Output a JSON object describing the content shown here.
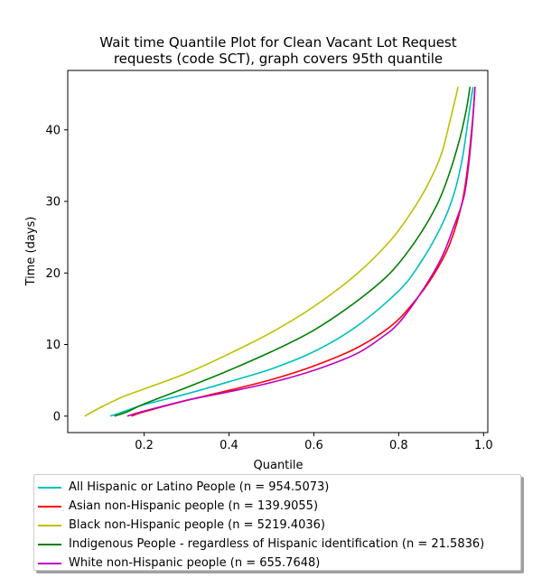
{
  "chart_data": {
    "type": "line",
    "title": [
      "Wait time Quantile Plot for Clean Vacant Lot Request",
      "requests (code SCT), graph covers 95th quantile"
    ],
    "xlabel": "Quantile",
    "ylabel": "Time (days)",
    "xlim": [
      0.02,
      1.01
    ],
    "ylim": [
      -2.3,
      48.3
    ],
    "xticks": [
      0.2,
      0.4,
      0.6,
      0.8,
      1.0
    ],
    "xtick_labels": [
      "0.2",
      "0.4",
      "0.6",
      "0.8",
      "1.0"
    ],
    "yticks": [
      0,
      10,
      20,
      30,
      40
    ],
    "ytick_labels": [
      "0",
      "10",
      "20",
      "30",
      "40"
    ],
    "grid": false,
    "legend_placement": "below",
    "series": [
      {
        "name": "All Hispanic or Latino People (n = 954.5073)",
        "color": "#00bfbf",
        "points": [
          [
            0.12,
            0
          ],
          [
            0.15,
            0.6
          ],
          [
            0.2,
            1.6
          ],
          [
            0.3,
            3.1
          ],
          [
            0.4,
            4.8
          ],
          [
            0.5,
            6.6
          ],
          [
            0.6,
            9.0
          ],
          [
            0.7,
            12.5
          ],
          [
            0.8,
            17.5
          ],
          [
            0.85,
            21.3
          ],
          [
            0.9,
            26.5
          ],
          [
            0.93,
            31.0
          ],
          [
            0.95,
            36.0
          ],
          [
            0.965,
            42.0
          ],
          [
            0.975,
            46.0
          ]
        ]
      },
      {
        "name": "Asian non-Hispanic people (n = 139.9055)",
        "color": "#ff0000",
        "points": [
          [
            0.17,
            0
          ],
          [
            0.2,
            0.6
          ],
          [
            0.3,
            2.2
          ],
          [
            0.4,
            3.6
          ],
          [
            0.5,
            5.1
          ],
          [
            0.6,
            7.0
          ],
          [
            0.7,
            9.5
          ],
          [
            0.78,
            12.5
          ],
          [
            0.83,
            15.5
          ],
          [
            0.88,
            19.5
          ],
          [
            0.92,
            24.0
          ],
          [
            0.95,
            30.0
          ],
          [
            0.965,
            36.0
          ],
          [
            0.975,
            42.0
          ],
          [
            0.98,
            46.0
          ]
        ]
      },
      {
        "name": "Black non-Hispanic people (n = 5219.4036)",
        "color": "#bfbf00",
        "points": [
          [
            0.06,
            0
          ],
          [
            0.1,
            1.3
          ],
          [
            0.15,
            2.7
          ],
          [
            0.2,
            3.8
          ],
          [
            0.3,
            6.0
          ],
          [
            0.4,
            8.7
          ],
          [
            0.5,
            11.7
          ],
          [
            0.6,
            15.3
          ],
          [
            0.7,
            19.8
          ],
          [
            0.78,
            24.5
          ],
          [
            0.83,
            28.5
          ],
          [
            0.87,
            32.5
          ],
          [
            0.9,
            36.5
          ],
          [
            0.92,
            41.0
          ],
          [
            0.94,
            46.0
          ]
        ]
      },
      {
        "name": "Indigenous People - regardless of Hispanic identification (n = 21.5836)",
        "color": "#008000",
        "points": [
          [
            0.13,
            0
          ],
          [
            0.16,
            0.6
          ],
          [
            0.2,
            1.7
          ],
          [
            0.3,
            4.0
          ],
          [
            0.4,
            6.4
          ],
          [
            0.5,
            9.0
          ],
          [
            0.6,
            12.0
          ],
          [
            0.7,
            16.0
          ],
          [
            0.78,
            20.0
          ],
          [
            0.84,
            24.5
          ],
          [
            0.89,
            29.5
          ],
          [
            0.92,
            34.0
          ],
          [
            0.945,
            39.0
          ],
          [
            0.96,
            43.0
          ],
          [
            0.968,
            46.0
          ]
        ]
      },
      {
        "name": "White non-Hispanic people (n = 655.7648)",
        "color": "#bf00bf",
        "points": [
          [
            0.16,
            0
          ],
          [
            0.2,
            0.7
          ],
          [
            0.3,
            2.2
          ],
          [
            0.4,
            3.4
          ],
          [
            0.5,
            4.7
          ],
          [
            0.6,
            6.4
          ],
          [
            0.7,
            8.7
          ],
          [
            0.76,
            11.0
          ],
          [
            0.8,
            13.0
          ],
          [
            0.85,
            17.0
          ],
          [
            0.9,
            22.0
          ],
          [
            0.93,
            26.5
          ],
          [
            0.955,
            31.0
          ],
          [
            0.97,
            38.0
          ],
          [
            0.98,
            46.0
          ]
        ]
      }
    ]
  }
}
